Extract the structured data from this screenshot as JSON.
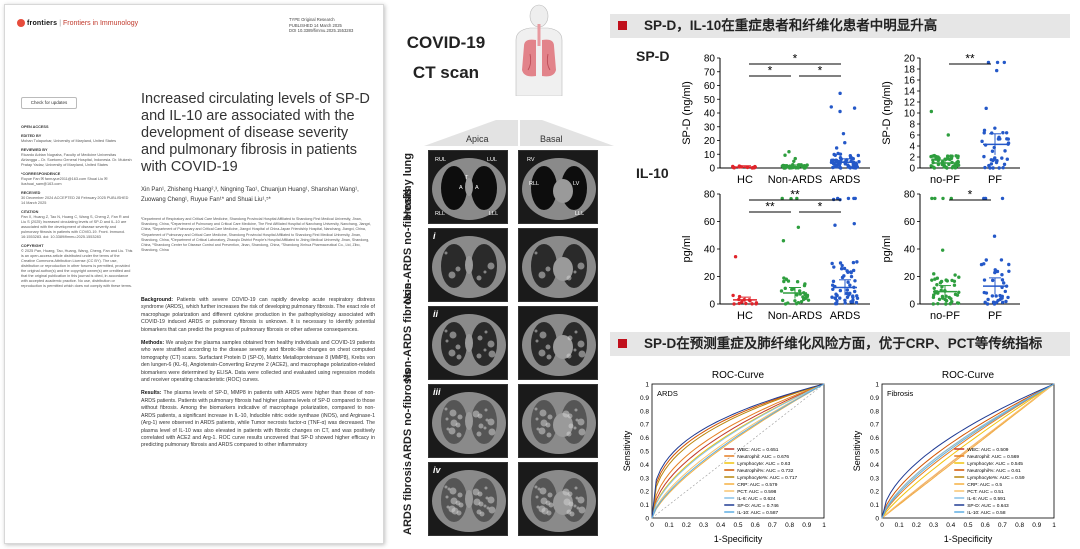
{
  "paper": {
    "publisher": "frontiers",
    "journal_sep": "|",
    "journal": "Frontiers in Immunology",
    "meta_type_label": "TYPE",
    "meta_type": "Original Research",
    "meta_pub_label": "PUBLISHED",
    "meta_pub": "14 March 2025",
    "meta_doi_label": "DOI",
    "meta_doi": "10.3389/fimmu.2025.1553283",
    "check_updates": "Check for updates",
    "title": "Increased circulating levels of SP-D and IL-10 are associated with the development of disease severity and pulmonary fibrosis in patients with COVID-19",
    "authors": "Xin Pan¹, Zhisheng Huang²,³, Ningning Tao¹, Chuanjun Huang¹, Shanshan Wang¹, Zuowang Cheng¹, Ruyue Fan¹* and Shuai Liu¹,⁵*",
    "affiliations": "¹Department of Respiratory and Critical Care Medicine, Shandong Provincial Hospital Affiliated to Shandong First Medical University, Jinan, Shandong, China, ²Department of Pulmonary and Critical Care Medicine, The First Affiliated Hospital of Nanchang University, Nanchang, Jiangxi, China, ³Department of Pulmonary and Critical Care Medicine, Jiangxi Hospital of China-Japan Friendship Hospital, Nanchang, Jiangxi, China, ⁴Department of Pulmonary and Critical Care Medicine, Shandong Provincial Hospital Affiliated to Shandong First Medical University, Jinan, Shandong, China, ⁵Department of Critical Laboratory, Zhaoqiu District People's Hospital Affiliated to Jining Medical University, Jinan, Shandong, China, ⁶Shandong Center for Disease Control and Prevention, Jinan, Shandong, China, ⁷Shandong Xinhua Pharmaceutical Co., Ltd, Zibo, Shandong, China",
    "sidebar": [
      {
        "label": "OPEN ACCESS",
        "text": ""
      },
      {
        "label": "EDITED BY",
        "text": "Mohan Tulapurkar, University of Maryland, United States"
      },
      {
        "label": "REVIEWED BY",
        "text": "Ricardo Adrian Nugraha, Faculty of Medicine Universitas Airlangga – Dr. Soetomo General Hospital, Indonesia. Dr. Mukesh Pratap Yadav, University of Maryland, United States"
      },
      {
        "label": "*CORRESPONDENCE",
        "text": "Ruyue Fan ✉ fanruyue2011@163.com  Shuai Liu ✉ liushuai_sam@163.com"
      },
      {
        "label": "RECEIVED",
        "text": "30 December 2024  ACCEPTED 28 February 2025  PUBLISHED 14 March 2025"
      },
      {
        "label": "CITATION",
        "text": "Pan X, Huang Z, Tao N, Huang C, Wang S, Cheng Z, Fan R and Liu S (2025) Increased circulating levels of SP-D and IL-10 are associated with the development of disease severity and pulmonary fibrosis in patients with COVID-19. Front. Immunol. 16:1553283. doi: 10.3389/fimmu.2025.1553283"
      },
      {
        "label": "COPYRIGHT",
        "text": "© 2025 Pan, Huang, Tao, Huang, Wang, Cheng, Fan and Liu. This is an open-access article distributed under the terms of the Creative Commons Attribution License (CC BY). The use, distribution or reproduction in other forums is permitted, provided the original author(s) and the copyright owner(s) are credited and that the original publication in this journal is cited, in accordance with accepted academic practice. No use, distribution or reproduction is permitted which does not comply with these terms."
      }
    ],
    "background_label": "Background:",
    "background": "Patients with severe COVID-19 can rapidly develop acute respiratory distress syndrome (ARDS), which further increases the risk of developing pulmonary fibrosis. The exact role of macrophage polarization and different cytokine production in the pathophysiology associated with COVID-19 induced ARDS or pulmonary fibrosis is unknown. It is necessary to identify potential biomarkers that can predict the progress of pulmonary fibrosis or other adverse consequences.",
    "methods_label": "Methods:",
    "methods": "We analyze the plasma samples obtained from healthy individuals and COVID-19 patients who were stratified according to the disease severity and fibrotic-like changes on chest computed tomography (CT) scans. Surfactant Protein D (SP-D), Matrix Metalloproteinase 8 (MMP8), Krebs von den lungen-6 (KL-6), Angiotensin-Converting Enzyme 2 (ACE2), and macrophage polarization-related biomarkers were determined by ELISA. Data were collected and evaluated using regression models and receiver operating characteristic (ROC) curves.",
    "results_label": "Results:",
    "results": "The plasma levels of SP-D, MMP8 in patients with ARDS were higher than those of non-ARDS patients. Patients with pulmonary fibrosis had higher plasma levels of SP-D compared to those without fibrosis. Among the biomarkers indicative of macrophage polarization, compared to non-ARDS patients, a significant increase in IL-10, Inducible nitric oxide synthase (iNOS), and Arginase-1 (Arg-1) were observed in ARDS patients, while Tumor necrosis factor-α (TNF-α) was decreased. The plasma level of IL-10 was also elevated in patients with fibrotic changes on CT, and was positively correlated with ACE2 and Arg-1. ROC curve results uncovered that SP-D showed higher efficacy in predicting pulmonary fibrosis and ARDS compared to other inflammatory"
  },
  "ct_panel": {
    "title_line1": "COVID-19",
    "title_line2": "CT scan",
    "col_apica": "Apica",
    "col_basal": "Basal",
    "rows": [
      {
        "label": "Healthy lung",
        "roman": ""
      },
      {
        "label": "Non-ARDS no-fibrosis",
        "roman": "i"
      },
      {
        "label": "Non-ARDS fibrosis",
        "roman": "ii"
      },
      {
        "label": "ARDS no-fibrosis",
        "roman": "iii"
      },
      {
        "label": "ARDS fibrosis",
        "roman": "iv"
      }
    ],
    "healthy_tags_apica": [
      "RUL",
      "LUL",
      "T",
      "A",
      "A",
      "RLL",
      "LLL"
    ],
    "healthy_tags_basal": [
      "RV",
      "RLL",
      "LV",
      "LLL"
    ]
  },
  "banners": {
    "top": "SP-D，IL-10在重症患者和纤维化患者中明显升高",
    "bottom": "SP-D在预测重症及肺纤维化风险方面，优于CRP、PCT等传统指标",
    "accent": "#c0101c"
  },
  "row_tags": {
    "spd": "SP-D",
    "il10": "IL-10"
  },
  "chart_data": [
    {
      "type": "scatter",
      "id": "spd-severity",
      "ylabel": "SP-D (ng/ml)",
      "ylim": [
        0,
        80
      ],
      "yticks": [
        0,
        10,
        20,
        30,
        40,
        50,
        60,
        70,
        80
      ],
      "categories": [
        "HC",
        "Non-ARDS",
        "ARDS"
      ],
      "colors": [
        "#e0242b",
        "#2e9e3e",
        "#2458c8"
      ],
      "means": [
        0.6,
        1.0,
        4.2
      ],
      "sig": [
        {
          "from": 0,
          "to": 2,
          "label": "*",
          "level": 0
        },
        {
          "from": 0,
          "to": 1,
          "label": "*",
          "level": 1
        },
        {
          "from": 1,
          "to": 2,
          "label": "*",
          "level": 1
        }
      ]
    },
    {
      "type": "scatter",
      "id": "spd-fibrosis",
      "ylabel": "SP-D (ng/ml)",
      "ylim": [
        0,
        20
      ],
      "yticks": [
        0,
        2,
        4,
        6,
        8,
        10,
        12,
        14,
        16,
        18,
        20
      ],
      "categories": [
        "no-PF",
        "PF"
      ],
      "colors": [
        "#2e9e3e",
        "#2458c8"
      ],
      "means": [
        0.9,
        4.3
      ],
      "sig": [
        {
          "from": 0,
          "to": 1,
          "label": "**",
          "level": 0
        }
      ]
    },
    {
      "type": "scatter",
      "id": "il10-severity",
      "ylabel": "pg/ml",
      "ylim": [
        0,
        80
      ],
      "yticks": [
        0,
        20,
        40,
        60,
        80
      ],
      "categories": [
        "HC",
        "Non-ARDS",
        "ARDS"
      ],
      "colors": [
        "#e0242b",
        "#2e9e3e",
        "#2458c8"
      ],
      "means": [
        3,
        8,
        12
      ],
      "sig": [
        {
          "from": 0,
          "to": 2,
          "label": "**",
          "level": 0
        },
        {
          "from": 0,
          "to": 1,
          "label": "**",
          "level": 1
        },
        {
          "from": 1,
          "to": 2,
          "label": "*",
          "level": 1
        }
      ]
    },
    {
      "type": "scatter",
      "id": "il10-fibrosis",
      "ylabel": "pg/ml",
      "ylim": [
        0,
        80
      ],
      "yticks": [
        0,
        20,
        40,
        60,
        80
      ],
      "categories": [
        "no-PF",
        "PF"
      ],
      "colors": [
        "#2e9e3e",
        "#2458c8"
      ],
      "means": [
        9,
        13
      ],
      "sig": [
        {
          "from": 0,
          "to": 1,
          "label": "*",
          "level": 0
        }
      ]
    },
    {
      "type": "line",
      "id": "roc-ards",
      "title": "ROC-Curve",
      "panel_label": "ARDS",
      "xlabel": "1-Specificity",
      "ylabel": "Sensitivity",
      "xlim": [
        0,
        1
      ],
      "ylim": [
        0,
        1
      ],
      "ticks": [
        "0",
        "0.1",
        "0.2",
        "0.3",
        "0.4",
        "0.5",
        "0.6",
        "0.7",
        "0.8",
        "0.9",
        "1"
      ],
      "series": [
        {
          "name": "WBC: AUC = 0.651",
          "auc": 0.651,
          "color": "#c0392b"
        },
        {
          "name": "Neutrophil: AUC = 0.676",
          "auc": 0.676,
          "color": "#e67e22"
        },
        {
          "name": "Lymphocyte: AUC = 0.63",
          "auc": 0.63,
          "color": "#f1c40f"
        },
        {
          "name": "Neutrophil%: AUC = 0.732",
          "auc": 0.732,
          "color": "#d35400"
        },
        {
          "name": "Lymphocyte%: AUC = 0.717",
          "auc": 0.717,
          "color": "#b8860b"
        },
        {
          "name": "CRP: AUC = 0.579",
          "auc": 0.579,
          "color": "#f5b041"
        },
        {
          "name": "PCT: AUC = 0.598",
          "auc": 0.598,
          "color": "#f8c471"
        },
        {
          "name": "IL-6: AUC = 0.624",
          "auc": 0.624,
          "color": "#85c1e9"
        },
        {
          "name": "SP-D: AUC = 0.746",
          "auc": 0.746,
          "color": "#1f3a93"
        },
        {
          "name": "IL-10: AUC = 0.587",
          "auc": 0.587,
          "color": "#5dade2"
        }
      ]
    },
    {
      "type": "line",
      "id": "roc-fibrosis",
      "title": "ROC-Curve",
      "panel_label": "Fibrosis",
      "xlabel": "1-Specificity",
      "ylabel": "Sensitivity",
      "xlim": [
        0,
        1
      ],
      "ylim": [
        0,
        1
      ],
      "ticks": [
        "0",
        "0.1",
        "0.2",
        "0.3",
        "0.4",
        "0.5",
        "0.6",
        "0.7",
        "0.8",
        "0.9",
        "1"
      ],
      "series": [
        {
          "name": "WBC: AUC = 0.509",
          "auc": 0.509,
          "color": "#c0392b"
        },
        {
          "name": "Neutrophil: AUC = 0.569",
          "auc": 0.569,
          "color": "#e67e22"
        },
        {
          "name": "Lymphocyte: AUC = 0.545",
          "auc": 0.545,
          "color": "#f1c40f"
        },
        {
          "name": "Neutrophil%: AUC = 0.61",
          "auc": 0.61,
          "color": "#d35400"
        },
        {
          "name": "Lymphocyte%: AUC = 0.59",
          "auc": 0.59,
          "color": "#b8860b"
        },
        {
          "name": "CRP: AUC = 0.5",
          "auc": 0.5,
          "color": "#f5b041"
        },
        {
          "name": "PCT: AUC = 0.51",
          "auc": 0.51,
          "color": "#f8c471"
        },
        {
          "name": "IL-6: AUC = 0.591",
          "auc": 0.591,
          "color": "#85c1e9"
        },
        {
          "name": "SP-D: AUC = 0.643",
          "auc": 0.643,
          "color": "#1f3a93"
        },
        {
          "name": "IL-10: AUC = 0.58",
          "auc": 0.58,
          "color": "#5dade2"
        }
      ]
    }
  ]
}
